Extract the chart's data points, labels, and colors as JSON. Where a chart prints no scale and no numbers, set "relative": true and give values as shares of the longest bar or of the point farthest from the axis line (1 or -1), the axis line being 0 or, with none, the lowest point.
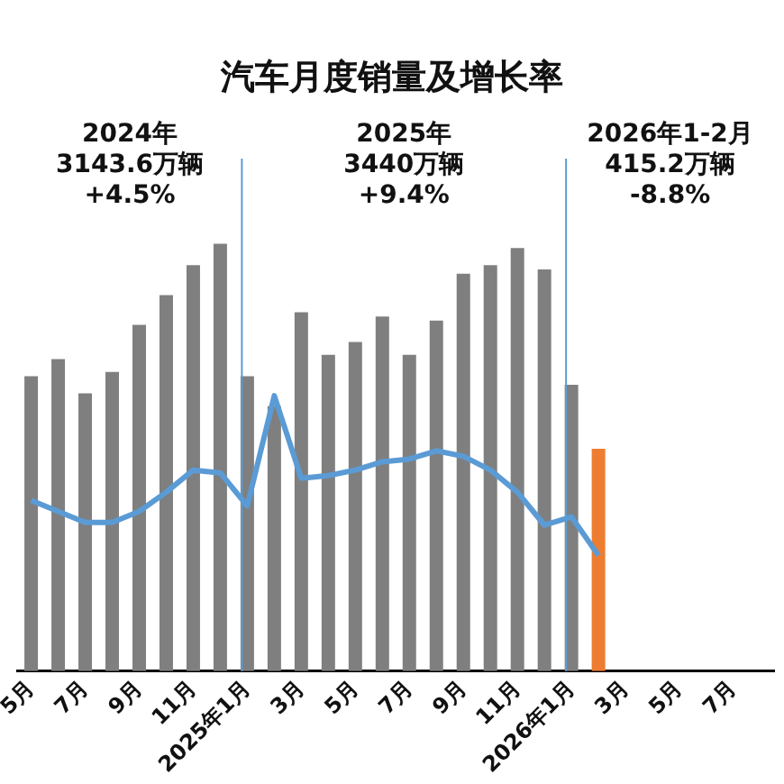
{
  "chart_data": {
    "type": "bar",
    "title": "汽车月度销量及增长率",
    "relative": true,
    "grid": false,
    "legend": false,
    "tick_labels": "x",
    "categories": [
      "5月",
      null,
      "7月",
      null,
      "9月",
      null,
      "11月",
      null,
      "2025年1月",
      null,
      "3月",
      null,
      "5月",
      null,
      "7月",
      null,
      "9月",
      null,
      "11月",
      null,
      "2026年1月",
      null,
      "3月",
      null,
      "5月",
      null,
      "7月",
      null
    ],
    "series": [
      {
        "color": "#7f7f7f",
        "colors": [
          "#7f7f7f",
          "#7f7f7f",
          "#7f7f7f",
          "#7f7f7f",
          "#7f7f7f",
          "#7f7f7f",
          "#7f7f7f",
          "#7f7f7f",
          "#7f7f7f",
          "#7f7f7f",
          "#7f7f7f",
          "#7f7f7f",
          "#7f7f7f",
          "#7f7f7f",
          "#7f7f7f",
          "#7f7f7f",
          "#7f7f7f",
          "#7f7f7f",
          "#7f7f7f",
          "#7f7f7f",
          "#7f7f7f",
          "#ed7d31",
          null,
          null,
          null,
          null,
          null,
          null
        ],
        "values": [
          0.69,
          0.73,
          0.65,
          0.7,
          0.81,
          0.88,
          0.95,
          1,
          0.69,
          0.62,
          0.84,
          0.74,
          0.77,
          0.83,
          0.74,
          0.82,
          0.93,
          0.95,
          0.99,
          0.94,
          0.67,
          0.52,
          null,
          null,
          null,
          null,
          null,
          null
        ]
      },
      {
        "type": "line",
        "axis": "y2",
        "color": "#5b9bd5",
        "marker": "none",
        "values": [
          0.62,
          0.58,
          0.54,
          0.54,
          0.58,
          0.65,
          0.73,
          0.72,
          0.6,
          1,
          0.7,
          0.71,
          0.73,
          0.76,
          0.77,
          0.8,
          0.78,
          0.73,
          0.65,
          0.53,
          0.56,
          0.42,
          null,
          null,
          null,
          null,
          null,
          null
        ]
      }
    ],
    "ref_lines": [
      {
        "axis": "x",
        "value": "2025年1月",
        "color": "#5b9bd5"
      },
      {
        "axis": "x",
        "value": "2026年1月",
        "color": "#5b9bd5"
      }
    ],
    "annotations": [
      "2024年\n3143.6万辆\n+4.5%",
      "2025年\n3440万辆\n+9.4%",
      "2026年1-2月\n415.2万辆\n-8.8%"
    ]
  }
}
